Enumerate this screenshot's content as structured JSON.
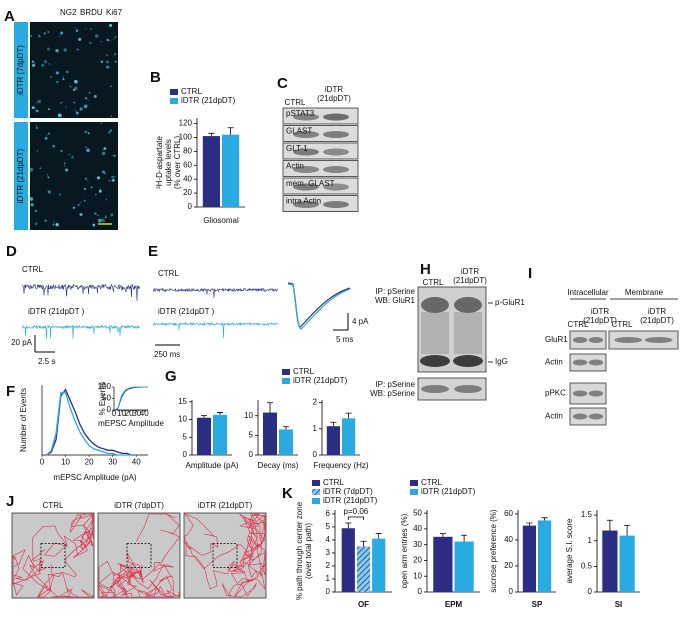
{
  "panel_letters": [
    "A",
    "B",
    "C",
    "D",
    "E",
    "F",
    "G",
    "H",
    "I",
    "J",
    "K"
  ],
  "panel_a": {
    "stains": [
      {
        "text": "NG2",
        "color": "#26c6e8"
      },
      {
        "text": "BRDU",
        "color": "#3cb44b"
      },
      {
        "text": "Ki67",
        "color": "#e6262d"
      }
    ],
    "rows": [
      "iDTR (7dpDT)",
      "iDTR (21dpDT)"
    ]
  },
  "panel_c": {
    "ctrl": "CTRL",
    "idtr": [
      "iDTR",
      "(21dpDT)"
    ],
    "rows": [
      "pSTAT3",
      "GLAST",
      "GLT-1",
      "Actin",
      "mem. GLAST",
      "intra Actin"
    ]
  },
  "panel_d": {
    "ctrl": "CTRL",
    "idtr": "iDTR (21dpDT )",
    "scale_y": "20 pA",
    "scale_x": "2.5 s"
  },
  "panel_e": {
    "ctrl": "CTRL",
    "idtr": "iDTR (21dpDT )",
    "scale_x": "250 ms",
    "avg_scale_y": "4 pA",
    "avg_scale_x": "5 ms"
  },
  "panel_h": {
    "ctrl": "CTRL",
    "idtr": [
      "iDTR",
      "(21dpDT)"
    ],
    "blot1": [
      "IP: pSerine",
      "WB: GluR1"
    ],
    "blot2": [
      "IP: pSerine",
      "WB: pSerine"
    ],
    "bands": [
      "p-GluR1",
      "IgG"
    ]
  },
  "panel_i": {
    "fractions": [
      "Intracellular",
      "Membrane"
    ],
    "ctrl": "CTRL",
    "idtr": [
      "iDTR",
      "(21dpDT)"
    ],
    "rows": [
      "GluR1",
      "Actin",
      "pPKC",
      "Actin"
    ]
  },
  "panel_j": {
    "groups": [
      "CTRL",
      "iDTR (7dpDT)",
      "iDTR (21dpDT)"
    ]
  },
  "chart_data": [
    {
      "type": "bar",
      "ylabel": [
        "³H-D-aspartate",
        "uptake levels",
        "(% over CTRL)"
      ],
      "categories": [
        "Gliosomal"
      ],
      "legend": true,
      "series": [
        {
          "name": "CTRL",
          "color": "#2b2e83",
          "values": [
            102
          ],
          "errors": [
            4
          ]
        },
        {
          "name": "iDTR (21dpDT)",
          "color": "#29abe2",
          "values": [
            104
          ],
          "errors": [
            10
          ]
        }
      ],
      "ylim": [
        0,
        128
      ],
      "yticks": [
        0,
        20,
        40,
        60,
        80,
        100,
        120
      ]
    },
    {
      "type": "line",
      "xlabel": "mEPSC Amplitude (pA)",
      "ylabel": "Number of Events",
      "x": [
        2,
        4,
        6,
        8,
        10,
        12,
        14,
        16,
        18,
        20,
        22,
        24,
        26,
        28,
        30,
        32,
        34,
        36,
        38,
        40
      ],
      "series": [
        {
          "color": "#2b2e83",
          "values": [
            0,
            2,
            10,
            38,
            42,
            35,
            28,
            20,
            14,
            10,
            7,
            5,
            4,
            3,
            3,
            2,
            1,
            1,
            0,
            0
          ]
        },
        {
          "color": "#29abe2",
          "values": [
            0,
            3,
            14,
            40,
            40,
            30,
            22,
            15,
            10,
            6,
            4,
            3,
            2,
            1,
            1,
            0,
            0,
            0,
            0,
            0
          ]
        }
      ],
      "xlim": [
        0,
        45
      ],
      "ylim": [
        0,
        45
      ],
      "xticks": [
        0,
        10,
        20,
        30,
        40
      ]
    },
    {
      "type": "line",
      "xlabel": "mEPSC Amplitude",
      "ylabel": "% Events",
      "x": [
        0,
        5,
        10,
        15,
        20,
        25,
        30,
        35,
        40,
        45
      ],
      "series": [
        {
          "color": "#2b2e83",
          "values": [
            0,
            5,
            55,
            82,
            92,
            96,
            98,
            99,
            100,
            100
          ]
        },
        {
          "color": "#29abe2",
          "values": [
            0,
            8,
            65,
            88,
            96,
            99,
            100,
            100,
            100,
            100
          ]
        }
      ],
      "xlim": [
        0,
        45
      ],
      "ylim": [
        0,
        100
      ],
      "xticks": [
        0,
        10,
        20,
        30,
        40
      ],
      "yticks": [
        0,
        50,
        100
      ]
    },
    {
      "type": "bar",
      "categories": [
        "Amplitude (pA)"
      ],
      "legend": true,
      "series": [
        {
          "name": "CTRL",
          "color": "#2b2e83",
          "values": [
            10.5
          ],
          "errors": [
            0.6
          ]
        },
        {
          "name": "iDTR (21dpDT)",
          "color": "#29abe2",
          "values": [
            11.3
          ],
          "errors": [
            0.7
          ]
        }
      ],
      "ylim": [
        0,
        15.5
      ],
      "yticks": [
        0,
        5,
        10,
        15
      ]
    },
    {
      "type": "bar",
      "categories": [
        "Decay (ms)"
      ],
      "series": [
        {
          "color": "#2b2e83",
          "values": [
            10.8
          ],
          "errors": [
            2.5
          ]
        },
        {
          "color": "#29abe2",
          "values": [
            6.5
          ],
          "errors": [
            0.7
          ]
        }
      ],
      "ylim": [
        0,
        14
      ],
      "yticks": [
        0,
        5,
        10
      ]
    },
    {
      "type": "bar",
      "categories": [
        "Frequency (Hz)"
      ],
      "series": [
        {
          "color": "#2b2e83",
          "values": [
            1.1
          ],
          "errors": [
            0.15
          ]
        },
        {
          "color": "#29abe2",
          "values": [
            1.4
          ],
          "errors": [
            0.2
          ]
        }
      ],
      "ylim": [
        0,
        2.1
      ],
      "yticks": [
        0,
        1,
        2
      ]
    },
    {
      "type": "bar",
      "ylabel": [
        "% path through center zone",
        "(over total path)"
      ],
      "categories": [
        "OF"
      ],
      "legend": true,
      "annotations": [
        "p=0.06"
      ],
      "series": [
        {
          "name": "CTRL",
          "color": "#2b2e83",
          "values": [
            4.9
          ],
          "errors": [
            0.4
          ]
        },
        {
          "name": "iDTR (7dpDT)",
          "color": "#29abe2",
          "hatch": true,
          "values": [
            3.5
          ],
          "errors": [
            0.4
          ]
        },
        {
          "name": "iDTR (21dpDT)",
          "color": "#29abe2",
          "values": [
            4.1
          ],
          "errors": [
            0.4
          ]
        }
      ],
      "ylim": [
        0,
        6.3
      ],
      "yticks": [
        0,
        1,
        2,
        3,
        4,
        5,
        6
      ]
    },
    {
      "type": "bar",
      "ylabel": "open arm entries (%)",
      "categories": [
        "EPM"
      ],
      "legend": true,
      "series": [
        {
          "name": "CTRL",
          "color": "#2b2e83",
          "values": [
            35
          ],
          "errors": [
            2
          ]
        },
        {
          "name": "iDTR (21dpDT)",
          "color": "#29abe2",
          "values": [
            32
          ],
          "errors": [
            4
          ]
        }
      ],
      "ylim": [
        0,
        52
      ],
      "yticks": [
        0,
        10,
        20,
        30,
        40,
        50
      ]
    },
    {
      "type": "bar",
      "ylabel": "sucrose preference (%)",
      "categories": [
        "SP"
      ],
      "series": [
        {
          "color": "#2b2e83",
          "values": [
            51
          ],
          "errors": [
            2
          ]
        },
        {
          "color": "#29abe2",
          "values": [
            55
          ],
          "errors": [
            2
          ]
        }
      ],
      "ylim": [
        0,
        63
      ],
      "yticks": [
        0,
        20,
        40,
        60
      ]
    },
    {
      "type": "bar",
      "ylabel": "average S.I. score",
      "categories": [
        "SI"
      ],
      "series": [
        {
          "color": "#2b2e83",
          "values": [
            1.2
          ],
          "errors": [
            0.2
          ]
        },
        {
          "color": "#29abe2",
          "values": [
            1.1
          ],
          "errors": [
            0.2
          ]
        }
      ],
      "ylim": [
        0,
        1.6
      ],
      "yticks": [
        0,
        0.5,
        1,
        1.5
      ]
    }
  ]
}
